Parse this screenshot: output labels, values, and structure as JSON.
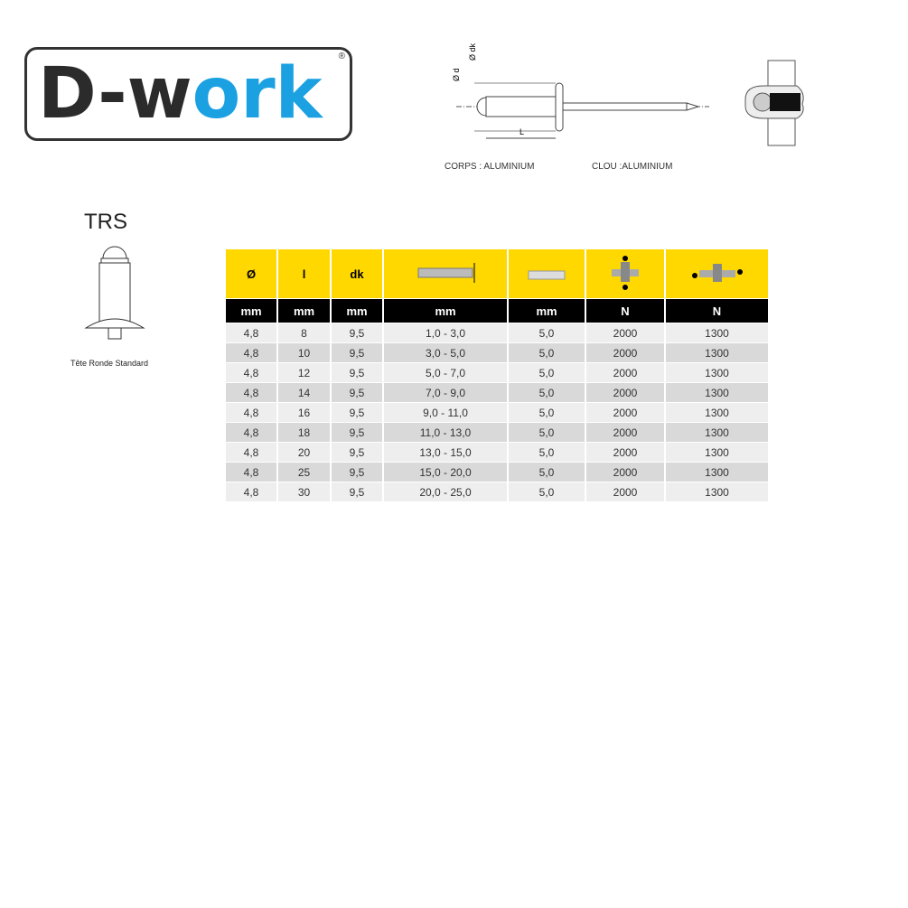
{
  "logo": {
    "text_dark": "D-w",
    "text_blue": "ork",
    "registered": "®",
    "brand": "D-work",
    "colors": {
      "dark": "#2b2b2b",
      "blue": "#1ba1e2"
    }
  },
  "diagram": {
    "label_d": "Ø d",
    "label_dk": "Ø dk",
    "label_L": "L",
    "body_material": "CORPS : ALUMINIUM",
    "mandrel_material": "CLOU :ALUMINIUM"
  },
  "head_type": {
    "title": "TRS",
    "caption": "Tête Ronde Standard"
  },
  "table": {
    "header": [
      "Ø",
      "l",
      "dk",
      "grip-range-icon",
      "drill-hole-icon",
      "tensile-strength-icon",
      "shear-strength-icon"
    ],
    "units": [
      "mm",
      "mm",
      "mm",
      "mm",
      "mm",
      "N",
      "N"
    ],
    "rows": [
      [
        "4,8",
        "8",
        "9,5",
        "1,0 - 3,0",
        "5,0",
        "2000",
        "1300"
      ],
      [
        "4,8",
        "10",
        "9,5",
        "3,0 - 5,0",
        "5,0",
        "2000",
        "1300"
      ],
      [
        "4,8",
        "12",
        "9,5",
        "5,0 - 7,0",
        "5,0",
        "2000",
        "1300"
      ],
      [
        "4,8",
        "14",
        "9,5",
        "7,0 - 9,0",
        "5,0",
        "2000",
        "1300"
      ],
      [
        "4,8",
        "16",
        "9,5",
        "9,0 - 11,0",
        "5,0",
        "2000",
        "1300"
      ],
      [
        "4,8",
        "18",
        "9,5",
        "11,0 - 13,0",
        "5,0",
        "2000",
        "1300"
      ],
      [
        "4,8",
        "20",
        "9,5",
        "13,0 - 15,0",
        "5,0",
        "2000",
        "1300"
      ],
      [
        "4,8",
        "25",
        "9,5",
        "15,0 - 20,0",
        "5,0",
        "2000",
        "1300"
      ],
      [
        "4,8",
        "30",
        "9,5",
        "20,0 - 25,0",
        "5,0",
        "2000",
        "1300"
      ]
    ],
    "colors": {
      "header": "#ffd800",
      "units": "#000000"
    }
  }
}
